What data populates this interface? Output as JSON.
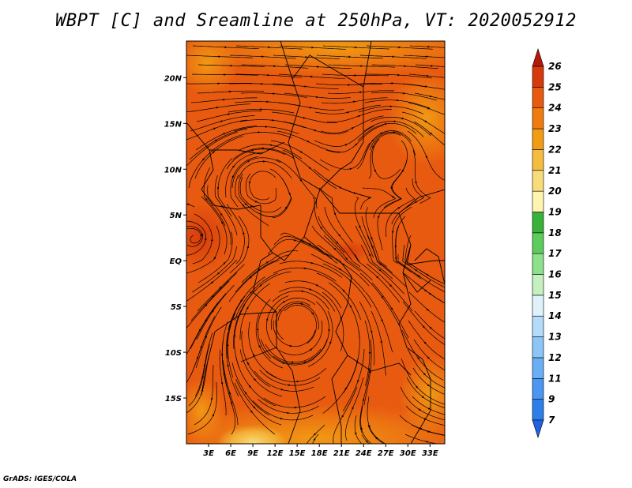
{
  "title": "WBPT [C] and Sreamline at 250hPa, VT: 2020052912",
  "credit": "GrADS: IGES/COLA",
  "map": {
    "variable": "WBPT",
    "unit": "C",
    "level": "250hPa",
    "valid_time": "2020052912",
    "lon_range": [
      0,
      35
    ],
    "lat_range": [
      -20,
      24
    ],
    "x_ticks": [
      "3E",
      "6E",
      "9E",
      "12E",
      "15E",
      "18E",
      "21E",
      "24E",
      "27E",
      "30E",
      "33E"
    ],
    "y_ticks": [
      "20N",
      "15N",
      "10N",
      "5N",
      "EQ",
      "5S",
      "10S",
      "15S"
    ]
  },
  "colorbar": {
    "labels": [
      "7",
      "9",
      "11",
      "12",
      "13",
      "14",
      "15",
      "16",
      "17",
      "18",
      "19",
      "20",
      "21",
      "22",
      "23",
      "24",
      "25",
      "26"
    ],
    "colors": [
      "#1e64e0",
      "#2e7ee8",
      "#4a96f0",
      "#6aaef5",
      "#8cc6f8",
      "#b4dcfa",
      "#dff2fb",
      "#c6f0c0",
      "#8ee08a",
      "#5ccc5c",
      "#38b238",
      "#fff5b0",
      "#f8dc7c",
      "#f5bd40",
      "#f29c14",
      "#ef7c0e",
      "#e85a10",
      "#d63a0c",
      "#b41808"
    ],
    "over_color": "#b41808",
    "under_color": "#1e64e0"
  }
}
